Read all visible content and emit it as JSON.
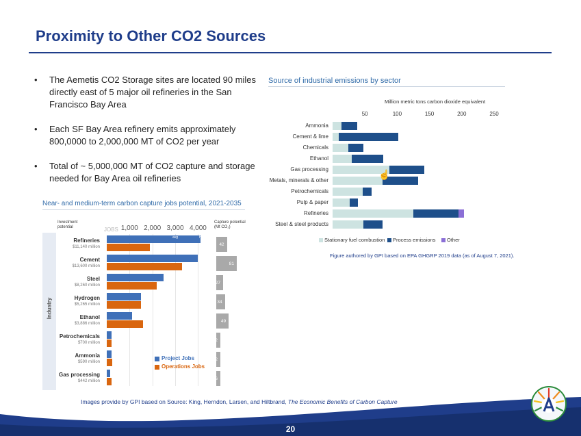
{
  "slide": {
    "title": "Proximity to Other CO2 Sources",
    "bullets": [
      "The Aemetis CO2 Storage sites are located 90 miles directly east of 5 major oil refineries in the San Francisco Bay Area",
      "Each SF Bay Area refinery emits approximately 800,0000 to 2,000,000 MT of CO2 per year",
      "Total of ~ 5,000,000 MT of CO2 capture and storage needed for Bay Area oil refineries"
    ],
    "bullet_symbol": "•",
    "footer_prefix": "Images provide by GPI based on Source: King, Herndon, Larsen, and Hiltbrand, ",
    "footer_italic": "The Economic Benefits of Carbon Capture",
    "page_number": "20"
  },
  "colors": {
    "title": "#1f3d8a",
    "stationary": "#cde3e1",
    "process": "#1e4f8a",
    "other": "#8b6fd6",
    "project_jobs": "#3f70b8",
    "operations_jobs": "#d9660f",
    "capture_box": "#a9a9a9",
    "footer_band": "#1f3d8a"
  },
  "chart_data": [
    {
      "type": "bar",
      "orientation": "horizontal",
      "stacked": true,
      "title": "Source of industrial emissions by sector",
      "axis_label": "Million metric tons carbon dioxide equivalent",
      "ticks": [
        "50",
        "100",
        "150",
        "200",
        "250"
      ],
      "xlim": [
        0,
        250
      ],
      "categories": [
        "Ammonia",
        "Cement & lime",
        "Chemicals",
        "Ethanol",
        "Gas processing",
        "Metals, minerals & other",
        "Petrochemicals",
        "Pulp & paper",
        "Refineries",
        "Steel & steel products"
      ],
      "series": [
        {
          "name": "Stationary fuel combustion",
          "values": [
            14,
            10,
            24,
            30,
            88,
            77,
            47,
            27,
            125,
            48
          ]
        },
        {
          "name": "Process emissions",
          "values": [
            24,
            92,
            24,
            48,
            54,
            55,
            13,
            12,
            70,
            29
          ]
        },
        {
          "name": "Other",
          "values": [
            0,
            0,
            0,
            0,
            0,
            0,
            0,
            0,
            8,
            0
          ]
        }
      ],
      "caption": "Figure authored by GPI based on EPA GHGRP 2019 data (as of August 7, 2021)."
    },
    {
      "type": "bar",
      "orientation": "horizontal",
      "title": "Near- and medium-term carbon capture jobs potential, 2021-2035",
      "left_header": "Investment potential",
      "jobs_label": "JOBS",
      "ticks": [
        "1,000",
        "2,000",
        "3,000",
        "4,000"
      ],
      "xlim": [
        0,
        4500
      ],
      "right_header": "Capture potential (Mt CO₂)",
      "axis_side_label": "Industry",
      "bar_inner_labels": [
        "avg",
        "high"
      ],
      "industries": [
        {
          "name": "Refineries",
          "investment": "$11,140 million",
          "project_jobs": 4100,
          "operations_jobs": 1900,
          "capture": "42"
        },
        {
          "name": "Cement",
          "investment": "$13,600 million",
          "project_jobs": 4000,
          "operations_jobs": 3300,
          "capture": "81"
        },
        {
          "name": "Steel",
          "investment": "$8,260 million",
          "project_jobs": 2500,
          "operations_jobs": 2200,
          "capture": "27"
        },
        {
          "name": "Hydrogen",
          "investment": "$5,265 million",
          "project_jobs": 1500,
          "operations_jobs": 1500,
          "capture": "34"
        },
        {
          "name": "Ethanol",
          "investment": "$3,886 million",
          "project_jobs": 1100,
          "operations_jobs": 1600,
          "capture": "49"
        },
        {
          "name": "Petrochemicals",
          "investment": "$700 million",
          "project_jobs": 200,
          "operations_jobs": 200,
          "capture": "2"
        },
        {
          "name": "Ammonia",
          "investment": "$590 million",
          "project_jobs": 200,
          "operations_jobs": 250,
          "capture": "12"
        },
        {
          "name": "Gas processing",
          "investment": "$442 million",
          "project_jobs": 150,
          "operations_jobs": 200,
          "capture": "6"
        }
      ],
      "legend": [
        "Project Jobs",
        "Operations Jobs"
      ]
    }
  ]
}
